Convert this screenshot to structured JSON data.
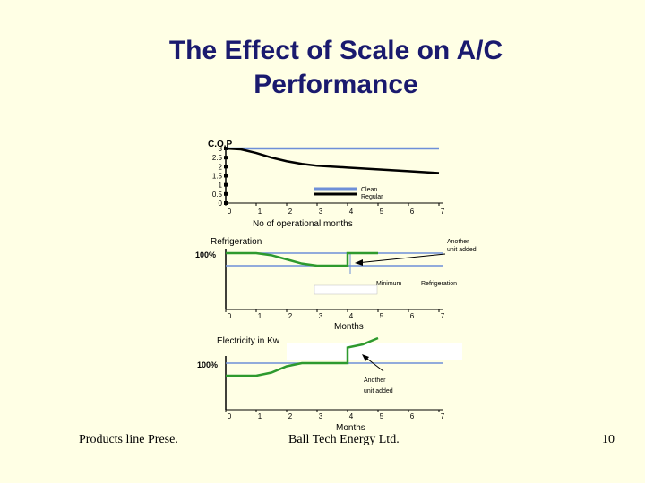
{
  "slide": {
    "title_line1": "The Effect of Scale on A/C",
    "title_line2": "Performance"
  },
  "footer": {
    "left": "Products line Prese.",
    "center": "Ball Tech Energy Ltd.",
    "page": "10"
  },
  "colors": {
    "background": "#ffffe5",
    "title": "#1a1a6e",
    "clean": "#6e8fd8",
    "regular": "#000000",
    "green": "#2e9a2e",
    "reference": "#6e8fd8"
  },
  "chart_data": [
    {
      "type": "line",
      "ylabel": "C.O.P",
      "xlabel": "No of operational months",
      "x_ticks": [
        "0",
        "1",
        "2",
        "3",
        "4",
        "5",
        "6",
        "7"
      ],
      "y_ticks": [
        "3",
        "2.5",
        "2",
        "1.5",
        "1",
        "0.5",
        "0"
      ],
      "xlim": [
        0,
        7
      ],
      "ylim": [
        0,
        3
      ],
      "legend_position": "right",
      "series": [
        {
          "name": "Clean",
          "x": [
            0,
            7
          ],
          "y": [
            3,
            3
          ]
        },
        {
          "name": "Regular",
          "x": [
            0,
            0.5,
            1,
            1.5,
            2,
            2.5,
            3,
            4,
            5,
            6,
            7
          ],
          "y": [
            3,
            2.95,
            2.75,
            2.5,
            2.3,
            2.15,
            2.05,
            1.95,
            1.85,
            1.75,
            1.65
          ]
        }
      ]
    },
    {
      "type": "line",
      "ylabel": "Refrigeration",
      "xlabel": "Months",
      "y_reference_label": "100%",
      "x_ticks": [
        "0",
        "1",
        "2",
        "3",
        "4",
        "5",
        "6",
        "7"
      ],
      "xlim": [
        0,
        7
      ],
      "annotations": [
        "Another unit added",
        "Minimum",
        "Refrigeration"
      ],
      "series": [
        {
          "name": "Refrigeration",
          "x": [
            0,
            1,
            1.5,
            2,
            2.5,
            3,
            3.5,
            4,
            4,
            4.5,
            5
          ],
          "y": [
            100,
            100,
            99,
            97,
            95,
            94,
            94,
            94,
            100,
            100,
            100
          ]
        }
      ]
    },
    {
      "type": "line",
      "ylabel": "Electricity in Kw",
      "xlabel": "Months",
      "y_reference_label": "100%",
      "x_ticks": [
        "0",
        "1",
        "2",
        "3",
        "4",
        "5",
        "6",
        "7"
      ],
      "xlim": [
        0,
        7
      ],
      "annotations": [
        "Another unit added"
      ],
      "series": [
        {
          "name": "Electricity",
          "x": [
            0,
            1,
            1.5,
            2,
            2.5,
            3,
            3.5,
            4,
            4,
            4.5,
            5
          ],
          "y": [
            100,
            100,
            101,
            103,
            104,
            104,
            104,
            104,
            109,
            110,
            112
          ]
        }
      ]
    }
  ]
}
